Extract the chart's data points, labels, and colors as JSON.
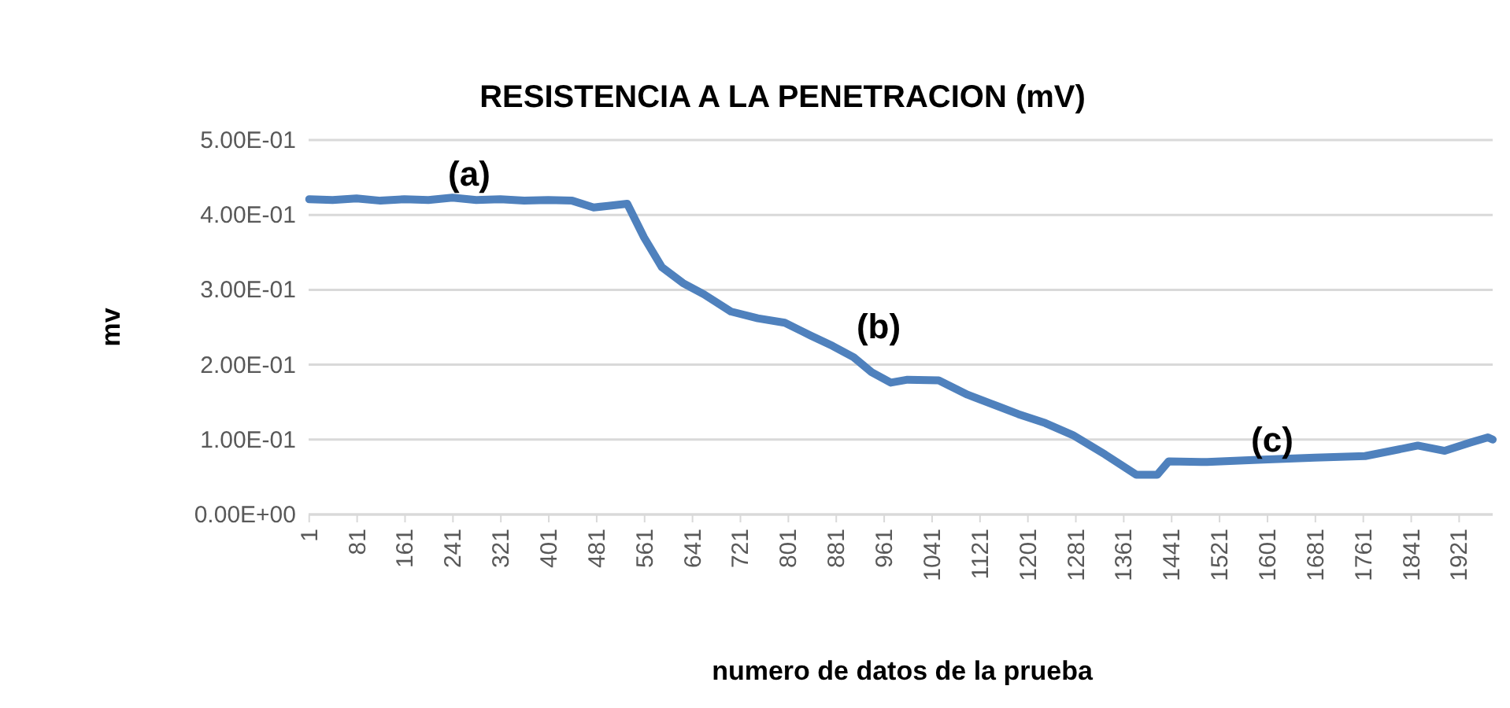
{
  "chart_data": {
    "type": "line",
    "title": "RESISTENCIA A LA PENETRACION (mV)",
    "xlabel": "numero de datos de la prueba",
    "ylabel": "mv",
    "x": [
      1,
      40,
      80,
      120,
      160,
      200,
      240,
      280,
      320,
      360,
      400,
      440,
      476,
      500,
      532,
      560,
      590,
      625,
      660,
      705,
      750,
      795,
      838,
      875,
      910,
      940,
      972,
      1000,
      1052,
      1100,
      1185,
      1230,
      1276,
      1330,
      1382,
      1417,
      1436,
      1500,
      1585,
      1680,
      1764,
      1852,
      1897,
      1940,
      1969,
      1977
    ],
    "series": [
      {
        "color": "#4f81bd",
        "values": [
          0.421,
          0.42,
          0.422,
          0.419,
          0.421,
          0.42,
          0.423,
          0.42,
          0.421,
          0.419,
          0.42,
          0.419,
          0.41,
          0.412,
          0.415,
          0.37,
          0.33,
          0.309,
          0.294,
          0.271,
          0.262,
          0.256,
          0.239,
          0.225,
          0.21,
          0.19,
          0.176,
          0.18,
          0.179,
          0.16,
          0.134,
          0.122,
          0.106,
          0.08,
          0.053,
          0.053,
          0.071,
          0.07,
          0.073,
          0.076,
          0.078,
          0.092,
          0.085,
          0.096,
          0.103,
          0.1
        ]
      }
    ],
    "xlim": [
      0,
      1977
    ],
    "ylim": [
      0,
      0.5
    ],
    "xticks": [
      1,
      81,
      161,
      241,
      321,
      401,
      481,
      561,
      641,
      721,
      801,
      881,
      961,
      1041,
      1121,
      1201,
      1281,
      1361,
      1441,
      1521,
      1601,
      1681,
      1761,
      1841,
      1921
    ],
    "yticks": [
      {
        "value": 0,
        "label": "0.00E+00"
      },
      {
        "value": 0.1,
        "label": "1.00E-01"
      },
      {
        "value": 0.2,
        "label": "2.00E-01"
      },
      {
        "value": 0.3,
        "label": "3.00E-01"
      },
      {
        "value": 0.4,
        "label": "4.00E-01"
      },
      {
        "value": 0.5,
        "label": "5.00E-01"
      }
    ],
    "grid": "y",
    "marker": "none",
    "line_style": "solid",
    "annotations": [
      "(a)",
      "(b)",
      "(c)"
    ]
  }
}
